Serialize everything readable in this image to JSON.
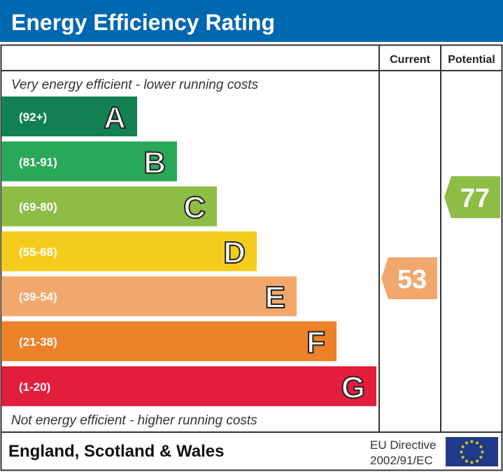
{
  "chart_data": {
    "type": "bar",
    "title": "Energy Efficiency Rating",
    "column_headers": {
      "current": "Current",
      "potential": "Potential"
    },
    "top_note": "Very energy efficient - lower running costs",
    "bottom_note": "Not energy efficient - higher running costs",
    "bands": [
      {
        "letter": "A",
        "range": "(92+)",
        "color": "#12814f"
      },
      {
        "letter": "B",
        "range": "(81-91)",
        "color": "#2aa85a"
      },
      {
        "letter": "C",
        "range": "(69-80)",
        "color": "#8dbd45"
      },
      {
        "letter": "D",
        "range": "(55-68)",
        "color": "#f5cc1c"
      },
      {
        "letter": "E",
        "range": "(39-54)",
        "color": "#f2a86c"
      },
      {
        "letter": "F",
        "range": "(21-38)",
        "color": "#ec8128"
      },
      {
        "letter": "G",
        "range": "(1-20)",
        "color": "#e31d3c"
      }
    ],
    "current": {
      "value": 53,
      "band": "E",
      "color": "#f2a86c"
    },
    "potential": {
      "value": 77,
      "band": "C",
      "color": "#8dbd45"
    }
  },
  "footer": {
    "region": "England, Scotland & Wales",
    "directive_line1": "EU Directive",
    "directive_line2": "2002/91/EC",
    "flag_icon": "eu-flag"
  },
  "colors": {
    "header": "#0067b1",
    "flag": "#1f3a8a",
    "star": "#ffdd00"
  }
}
